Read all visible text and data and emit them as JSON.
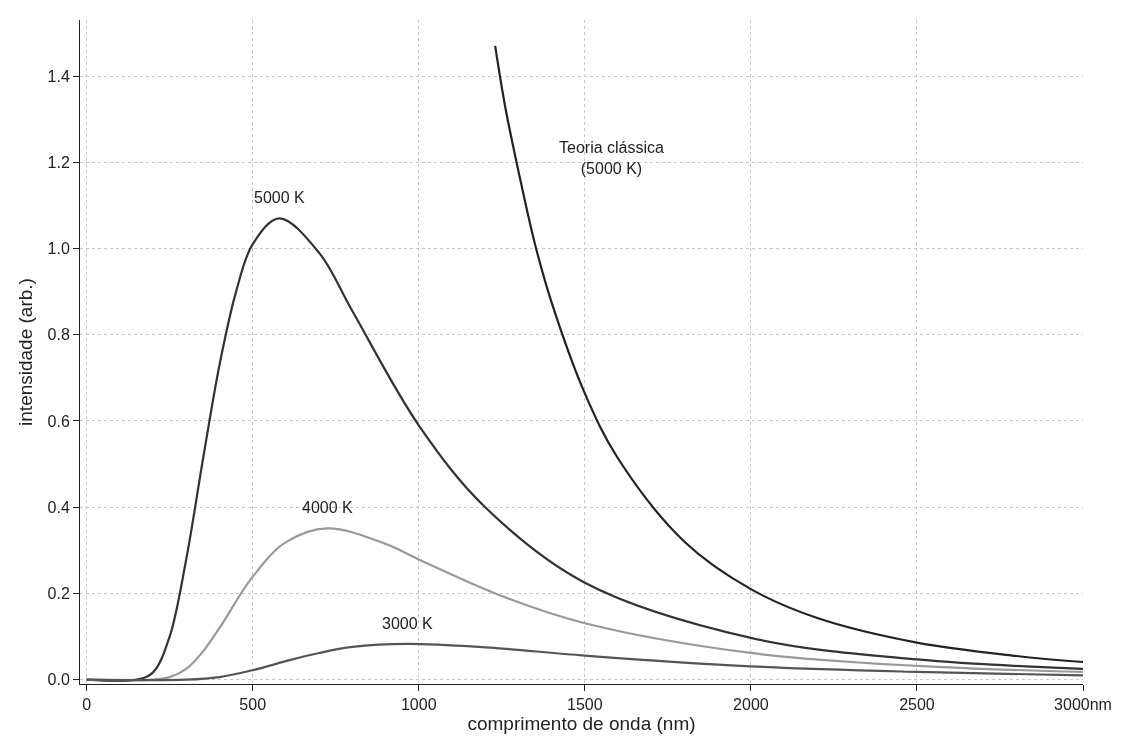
{
  "chart_data": {
    "type": "line",
    "xlabel": "comprimento de onda (nm)",
    "ylabel": "intensidade (arb.)",
    "xlim": [
      -20,
      3000
    ],
    "ylim": [
      -0.01,
      1.53
    ],
    "xticks": [
      0,
      500,
      1000,
      1500,
      2000,
      2500,
      {
        "value": 3000,
        "label": "3000nm"
      }
    ],
    "yticks": [
      {
        "value": 0,
        "label": "0.0"
      },
      {
        "value": 0.2,
        "label": "0.2"
      },
      {
        "value": 0.4,
        "label": "0.4"
      },
      {
        "value": 0.6,
        "label": "0.6"
      },
      {
        "value": 0.8,
        "label": "0.8"
      },
      {
        "value": 1,
        "label": "1.0"
      },
      {
        "value": 1.2,
        "label": "1.2"
      },
      {
        "value": 1.4,
        "label": "1.4"
      }
    ],
    "grid": true,
    "marker": "none",
    "line_style": "solid",
    "series": [
      {
        "color": "#333333",
        "x": [
          0,
          150,
          200,
          250,
          300,
          350,
          400,
          450,
          500,
          580,
          700,
          800,
          1000,
          1200,
          1500,
          2000,
          2500,
          3000
        ],
        "values": [
          0,
          0,
          0.017,
          0.1,
          0.28,
          0.51,
          0.73,
          0.9,
          1.01,
          1.07,
          0.99,
          0.855,
          0.59,
          0.4,
          0.225,
          0.097,
          0.047,
          0.025
        ]
      },
      {
        "color": "#999999",
        "x": [
          0,
          200,
          250,
          300,
          350,
          400,
          500,
          600,
          725,
          900,
          1000,
          1250,
          1500,
          2000,
          2500,
          3000
        ],
        "values": [
          0,
          0,
          0.006,
          0.025,
          0.065,
          0.12,
          0.239,
          0.319,
          0.351,
          0.315,
          0.279,
          0.194,
          0.131,
          0.062,
          0.032,
          0.018
        ]
      },
      {
        "color": "#555555",
        "x": [
          0,
          300,
          400,
          500,
          600,
          700,
          800,
          966,
          1200,
          1500,
          2000,
          2500,
          3000
        ],
        "values": [
          0,
          0,
          0.006,
          0.022,
          0.043,
          0.062,
          0.076,
          0.083,
          0.075,
          0.056,
          0.031,
          0.018,
          0.01
        ]
      },
      {
        "color": "#222222",
        "x": [
          1230,
          1260,
          1300,
          1350,
          1400,
          1500,
          1600,
          1800,
          2000,
          2200,
          2500,
          2800,
          3000
        ],
        "values": [
          1.47,
          1.33,
          1.18,
          1.01,
          0.875,
          0.664,
          0.513,
          0.32,
          0.21,
          0.143,
          0.086,
          0.055,
          0.041
        ]
      }
    ],
    "annotations": [
      {
        "text": "5000 K",
        "x": 580,
        "y": 1.07
      },
      {
        "text": "4000 K",
        "x": 725,
        "y": 0.351
      },
      {
        "text": "3000 K",
        "x": 966,
        "y": 0.083
      },
      "Teoria clássica\n(5000 K)"
    ]
  }
}
